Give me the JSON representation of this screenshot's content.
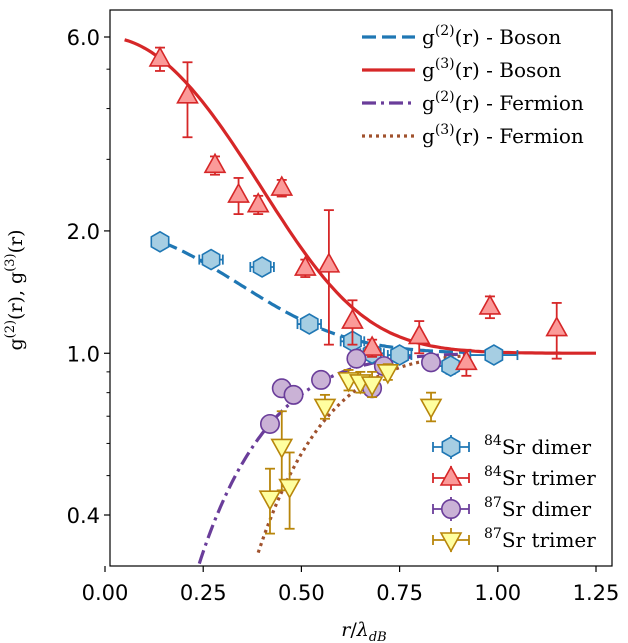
{
  "chart_data": {
    "type": "scatter",
    "xlabel": "r/λ_dB",
    "ylabel": "g(2)(r), g(3)(r)",
    "xlim": [
      0,
      1.28
    ],
    "ylim": [
      0.3,
      7.2
    ],
    "yscale": "log",
    "x_ticks": [
      "0.00",
      "0.25",
      "0.50",
      "0.75",
      "1.00",
      "1.25"
    ],
    "x_tick_values": [
      0,
      0.25,
      0.5,
      0.75,
      1.0,
      1.25
    ],
    "y_ticks": [
      "0.4",
      "1.0",
      "2.0",
      "6.0"
    ],
    "y_tick_values": [
      0.4,
      1.0,
      2.0,
      6.0
    ],
    "grid": false,
    "legend_top": {
      "placement": "top-right",
      "entries": [
        {
          "sup": "(2)",
          "rest": "(r) - Boson",
          "color": "#1f77b4",
          "style": "dashed"
        },
        {
          "sup": "(3)",
          "rest": "(r) - Boson",
          "color": "#d62728",
          "style": "solid"
        },
        {
          "sup": "(2)",
          "rest": "(r) - Fermion",
          "color": "#6a3d9a",
          "style": "dashdot"
        },
        {
          "sup": "(3)",
          "rest": "(r) - Fermion",
          "color": "#a0522d",
          "style": "dotted"
        }
      ]
    },
    "legend_bottom": {
      "placement": "bottom-right",
      "entries": [
        {
          "iso": "84",
          "text": "Sr dimer",
          "marker": "hexagon",
          "fill": "#a6cee3",
          "edge": "#1f77b4"
        },
        {
          "iso": "84",
          "text": "Sr trimer",
          "marker": "triangle-up",
          "fill": "#fb9a99",
          "edge": "#d62728"
        },
        {
          "iso": "87",
          "text": "Sr dimer",
          "marker": "circle",
          "fill": "#cab2d6",
          "edge": "#6a3d9a"
        },
        {
          "iso": "87",
          "text": "Sr trimer",
          "marker": "triangle-down",
          "fill": "#ffffa0",
          "edge": "#b8860b"
        }
      ]
    },
    "series": [
      {
        "name": "84Sr dimer",
        "marker": "hexagon",
        "fill": "#a6cee3",
        "edge": "#1f77b4",
        "points": [
          {
            "x": 0.14,
            "y": 1.88,
            "xerr": 0.02,
            "yerr": 0.04
          },
          {
            "x": 0.27,
            "y": 1.7,
            "xerr": 0.03,
            "yerr": 0.04
          },
          {
            "x": 0.4,
            "y": 1.63,
            "xerr": 0.03,
            "yerr": 0.04
          },
          {
            "x": 0.52,
            "y": 1.18,
            "xerr": 0.03,
            "yerr": 0.03
          },
          {
            "x": 0.63,
            "y": 1.07,
            "xerr": 0.03,
            "yerr": 0.03
          },
          {
            "x": 0.68,
            "y": 1.0,
            "xerr": 0.03,
            "yerr": 0.03
          },
          {
            "x": 0.75,
            "y": 0.99,
            "xerr": 0.03,
            "yerr": 0.03
          },
          {
            "x": 0.88,
            "y": 0.93,
            "xerr": 0.04,
            "yerr": 0.04
          },
          {
            "x": 0.99,
            "y": 0.99,
            "xerr": 0.06,
            "yerr": 0.03
          }
        ]
      },
      {
        "name": "84Sr trimer",
        "marker": "triangle-up",
        "fill": "#fb9a99",
        "edge": "#d62728",
        "points": [
          {
            "x": 0.14,
            "y": 5.3,
            "yerr": 0.35
          },
          {
            "x": 0.21,
            "y": 4.3,
            "yerr": 0.9
          },
          {
            "x": 0.28,
            "y": 2.9,
            "yerr": 0.15
          },
          {
            "x": 0.34,
            "y": 2.45,
            "yerr": 0.25
          },
          {
            "x": 0.39,
            "y": 2.32,
            "yerr": 0.12
          },
          {
            "x": 0.45,
            "y": 2.55,
            "yerr": 0.12
          },
          {
            "x": 0.51,
            "y": 1.62,
            "yerr": 0.08
          },
          {
            "x": 0.57,
            "y": 1.65,
            "yerr": 0.6
          },
          {
            "x": 0.63,
            "y": 1.2,
            "yerr": 0.15
          },
          {
            "x": 0.68,
            "y": 1.03,
            "yerr": 0.05
          },
          {
            "x": 0.8,
            "y": 1.1,
            "yerr": 0.1
          },
          {
            "x": 0.92,
            "y": 0.95,
            "yerr": 0.07
          },
          {
            "x": 0.98,
            "y": 1.3,
            "yerr": 0.08
          },
          {
            "x": 1.15,
            "y": 1.15,
            "yerr": 0.18
          }
        ]
      },
      {
        "name": "87Sr dimer",
        "marker": "circle",
        "fill": "#cab2d6",
        "edge": "#6a3d9a",
        "points": [
          {
            "x": 0.42,
            "y": 0.67,
            "yerr": 0.02
          },
          {
            "x": 0.45,
            "y": 0.82,
            "yerr": 0.02
          },
          {
            "x": 0.48,
            "y": 0.79,
            "yerr": 0.02
          },
          {
            "x": 0.55,
            "y": 0.86,
            "yerr": 0.02
          },
          {
            "x": 0.64,
            "y": 0.97,
            "yerr": 0.03
          },
          {
            "x": 0.68,
            "y": 0.82,
            "yerr": 0.03
          },
          {
            "x": 0.71,
            "y": 0.93,
            "yerr": 0.03
          },
          {
            "x": 0.83,
            "y": 0.95,
            "yerr": 0.03
          }
        ]
      },
      {
        "name": "87Sr trimer",
        "marker": "triangle-down",
        "fill": "#ffffa0",
        "edge": "#b8860b",
        "points": [
          {
            "x": 0.42,
            "y": 0.44,
            "yerr": 0.08
          },
          {
            "x": 0.45,
            "y": 0.59,
            "yerr": 0.13
          },
          {
            "x": 0.47,
            "y": 0.47,
            "yerr": 0.1
          },
          {
            "x": 0.56,
            "y": 0.74,
            "yerr": 0.05
          },
          {
            "x": 0.62,
            "y": 0.86,
            "yerr": 0.05
          },
          {
            "x": 0.65,
            "y": 0.85,
            "yerr": 0.05
          },
          {
            "x": 0.68,
            "y": 0.84,
            "yerr": 0.06
          },
          {
            "x": 0.72,
            "y": 0.9,
            "yerr": 0.04
          },
          {
            "x": 0.83,
            "y": 0.74,
            "yerr": 0.06
          }
        ]
      }
    ],
    "curves": [
      {
        "name": "g(2)(r) - Boson",
        "color": "#1f77b4",
        "style": "dashed",
        "x_range": [
          0.15,
          0.92
        ],
        "amplitude": 1.0,
        "power": 1
      },
      {
        "name": "g(3)(r) - Boson",
        "color": "#d62728",
        "style": "solid",
        "x_range": [
          0.05,
          1.25
        ],
        "amplitude": 1.0,
        "power": 3
      },
      {
        "name": "g(2)(r) - Fermion",
        "color": "#6a3d9a",
        "style": "dashdot",
        "x_range": [
          0.24,
          0.92
        ],
        "amplitude": -1.0,
        "power": 1
      },
      {
        "name": "g(3)(r) - Fermion",
        "color": "#a0522d",
        "style": "dotted",
        "x_range": [
          0.39,
          0.92
        ],
        "amplitude": -1.0,
        "power": 3
      }
    ]
  }
}
